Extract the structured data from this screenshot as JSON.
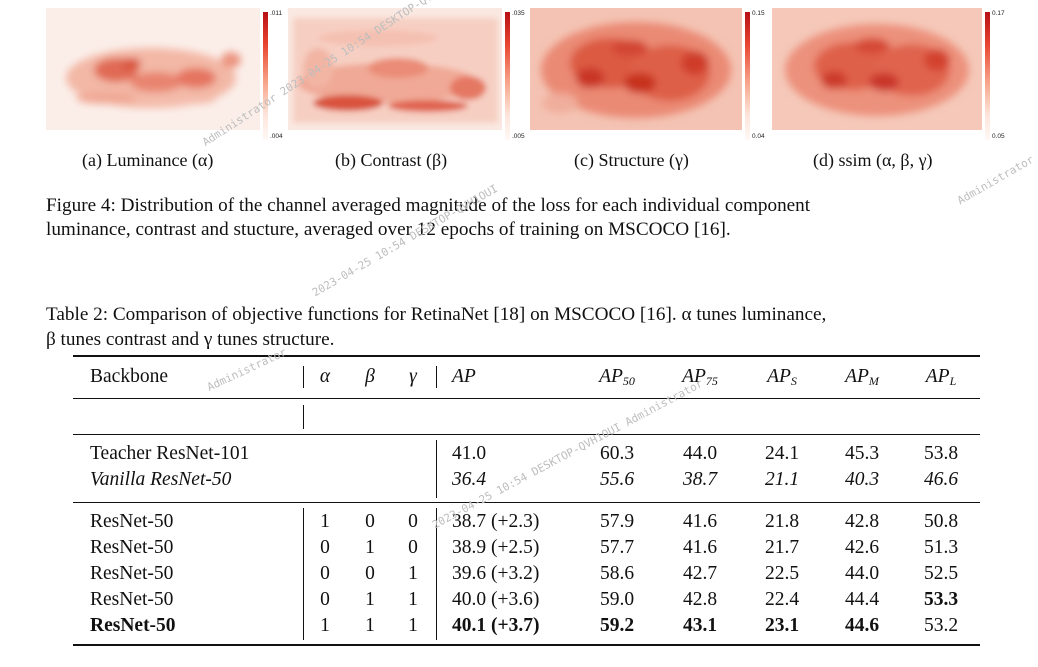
{
  "figure": {
    "panels": [
      {
        "id": "a",
        "caption": "(a) Luminance (α)",
        "cbar_max": ".011",
        "cbar_min": ".004"
      },
      {
        "id": "b",
        "caption": "(b) Contrast (β)",
        "cbar_max": ".035",
        "cbar_min": ".005"
      },
      {
        "id": "c",
        "caption": "(c) Structure (γ)",
        "cbar_max": "0.15",
        "cbar_min": "0.04"
      },
      {
        "id": "d",
        "caption": "(d) ssim (α, β, γ)",
        "cbar_max": "0.17",
        "cbar_min": "0.05"
      }
    ],
    "caption_line1": "Figure 4: Distribution of the channel averaged magnitude of the loss for each individual component",
    "caption_line2": "luminance, contrast and stucture, averaged over 12 epochs of training on MSCOCO [16]."
  },
  "table": {
    "caption_line1": "Table 2: Comparison of objective functions for RetinaNet [18] on MSCOCO [16]. α tunes luminance,",
    "caption_line2": "β tunes contrast and γ tunes structure.",
    "headers": {
      "backbone": "Backbone",
      "alpha": "α",
      "beta": "β",
      "gamma": "γ",
      "ap": "AP",
      "ap_prefix": "AP",
      "ap50_sub": "50",
      "ap75_sub": "75",
      "aps_sub": "S",
      "apm_sub": "M",
      "apl_sub": "L"
    },
    "rows": [
      {
        "backbone": "Teacher ResNet-101",
        "alpha": "",
        "beta": "",
        "gamma": "",
        "ap": "41.0",
        "ap50": "60.3",
        "ap75": "44.0",
        "aps": "24.1",
        "apm": "45.3",
        "apl": "53.8"
      },
      {
        "backbone": "Vanilla ResNet-50",
        "alpha": "",
        "beta": "",
        "gamma": "",
        "ap": "36.4",
        "ap50": "55.6",
        "ap75": "38.7",
        "aps": "21.1",
        "apm": "40.3",
        "apl": "46.6"
      },
      {
        "backbone": "ResNet-50",
        "alpha": "1",
        "beta": "0",
        "gamma": "0",
        "ap": "38.7 (+2.3)",
        "ap50": "57.9",
        "ap75": "41.6",
        "aps": "21.8",
        "apm": "42.8",
        "apl": "50.8"
      },
      {
        "backbone": "ResNet-50",
        "alpha": "0",
        "beta": "1",
        "gamma": "0",
        "ap": "38.9 (+2.5)",
        "ap50": "57.7",
        "ap75": "41.6",
        "aps": "21.7",
        "apm": "42.6",
        "apl": "51.3"
      },
      {
        "backbone": "ResNet-50",
        "alpha": "0",
        "beta": "0",
        "gamma": "1",
        "ap": "39.6 (+3.2)",
        "ap50": "58.6",
        "ap75": "42.7",
        "aps": "22.5",
        "apm": "44.0",
        "apl": "52.5"
      },
      {
        "backbone": "ResNet-50",
        "alpha": "0",
        "beta": "1",
        "gamma": "1",
        "ap": "40.0 (+3.6)",
        "ap50": "59.0",
        "ap75": "42.8",
        "aps": "22.4",
        "apm": "44.4",
        "apl": "53.3"
      },
      {
        "backbone": "ResNet-50",
        "alpha": "1",
        "beta": "1",
        "gamma": "1",
        "ap": "40.1 (+3.7)",
        "ap50": "59.2",
        "ap75": "43.1",
        "aps": "23.1",
        "apm": "44.6",
        "apl": "53.2"
      }
    ]
  },
  "watermarks": [
    "Administrator 2023-04-25 10:54 DESKTOP-QVH1OUI",
    "2023-04-25 10:54 DESKTOP-QVH1OUI",
    "Administrator",
    "2023-04-25 10:54 DESKTOP-QVH1OUI Administrator",
    "Administrator"
  ]
}
